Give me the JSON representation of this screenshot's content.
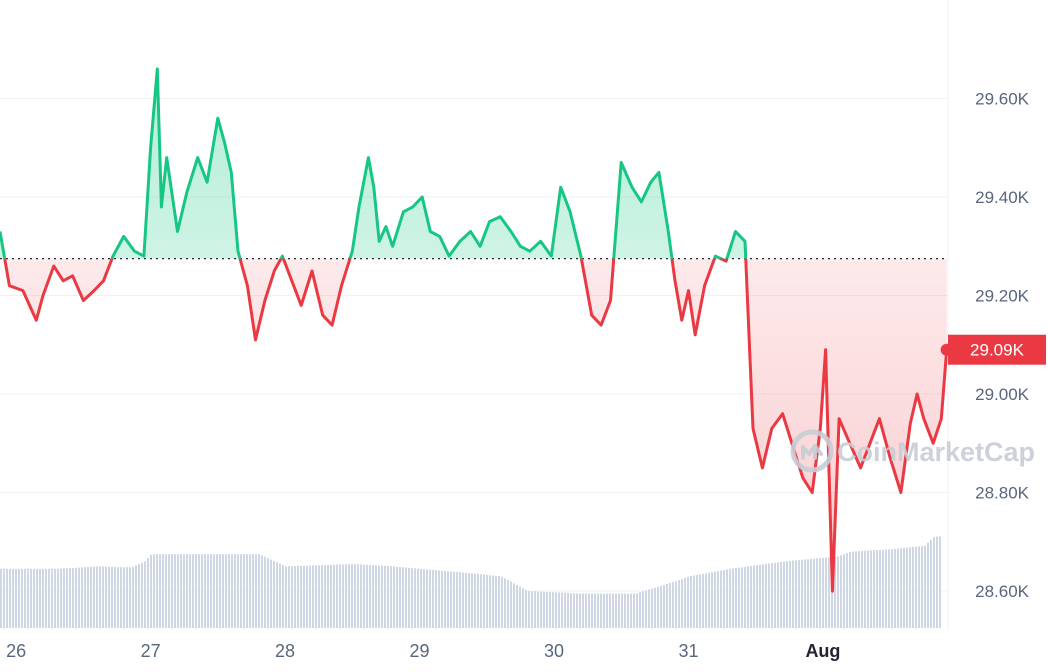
{
  "watermark": {
    "text": "CoinMarketCap",
    "icon": "coinmarketcap-logo-icon"
  },
  "colors": {
    "up": "#16c784",
    "down": "#ea3943",
    "grid": "#eff2f5",
    "volume": "#cfd6e4",
    "axis_text": "#58667e"
  },
  "chart_data": {
    "type": "line",
    "title": "",
    "xlabel": "",
    "ylabel": "",
    "baseline": 29275,
    "current_price_label": "29.09K",
    "current_price": 29090,
    "ylim": [
      28525,
      29800
    ],
    "yticks": [
      {
        "v": 29600,
        "label": "29.60K"
      },
      {
        "v": 29400,
        "label": "29.40K"
      },
      {
        "v": 29200,
        "label": "29.20K"
      },
      {
        "v": 29000,
        "label": "29.00K"
      },
      {
        "v": 28800,
        "label": "28.80K"
      },
      {
        "v": 28600,
        "label": "28.60K"
      }
    ],
    "xlim": [
      25.88,
      32.93
    ],
    "xticks": [
      {
        "x": 26,
        "label": "26",
        "bold": false
      },
      {
        "x": 27,
        "label": "27",
        "bold": false
      },
      {
        "x": 28,
        "label": "28",
        "bold": false
      },
      {
        "x": 29,
        "label": "29",
        "bold": false
      },
      {
        "x": 30,
        "label": "30",
        "bold": false
      },
      {
        "x": 31,
        "label": "31",
        "bold": false
      },
      {
        "x": 32,
        "label": "Aug",
        "bold": true
      }
    ],
    "price": {
      "x": [
        25.88,
        25.95,
        26.05,
        26.15,
        26.2,
        26.28,
        26.35,
        26.42,
        26.5,
        26.58,
        26.65,
        26.72,
        26.8,
        26.88,
        26.95,
        27,
        27.05,
        27.08,
        27.12,
        27.2,
        27.27,
        27.35,
        27.42,
        27.5,
        27.55,
        27.6,
        27.65,
        27.72,
        27.78,
        27.85,
        27.92,
        27.98,
        28.05,
        28.12,
        28.2,
        28.28,
        28.35,
        28.42,
        28.5,
        28.55,
        28.62,
        28.66,
        28.7,
        28.75,
        28.8,
        28.88,
        28.95,
        29.02,
        29.08,
        29.15,
        29.22,
        29.3,
        29.38,
        29.45,
        29.52,
        29.6,
        29.68,
        29.75,
        29.82,
        29.9,
        29.98,
        30.05,
        30.12,
        30.2,
        30.28,
        30.35,
        30.42,
        30.5,
        30.58,
        30.65,
        30.72,
        30.78,
        30.85,
        30.9,
        30.95,
        31,
        31.05,
        31.12,
        31.2,
        31.28,
        31.35,
        31.42,
        31.48,
        31.55,
        31.62,
        31.7,
        31.78,
        31.85,
        31.92,
        31.98,
        32.02,
        32.07,
        32.12,
        32.2,
        32.28,
        32.35,
        32.42,
        32.5,
        32.58,
        32.65,
        32.7,
        32.75,
        32.82,
        32.88,
        32.92
      ],
      "y": [
        29330,
        29220,
        29210,
        29150,
        29200,
        29260,
        29230,
        29240,
        29190,
        29210,
        29230,
        29280,
        29320,
        29290,
        29280,
        29500,
        29660,
        29380,
        29480,
        29330,
        29410,
        29480,
        29430,
        29560,
        29510,
        29450,
        29290,
        29220,
        29110,
        29190,
        29250,
        29280,
        29230,
        29180,
        29250,
        29160,
        29140,
        29220,
        29290,
        29380,
        29480,
        29420,
        29310,
        29340,
        29300,
        29370,
        29380,
        29400,
        29330,
        29320,
        29280,
        29310,
        29330,
        29300,
        29350,
        29360,
        29330,
        29300,
        29290,
        29310,
        29280,
        29420,
        29370,
        29280,
        29160,
        29140,
        29190,
        29470,
        29420,
        29390,
        29430,
        29450,
        29330,
        29230,
        29150,
        29210,
        29120,
        29220,
        29280,
        29270,
        29330,
        29310,
        28930,
        28850,
        28930,
        28960,
        28890,
        28830,
        28800,
        28930,
        29090,
        28600,
        28950,
        28900,
        28850,
        28900,
        28950,
        28870,
        28800,
        28940,
        29000,
        28950,
        28900,
        28950,
        29090
      ]
    },
    "volume": {
      "x": [
        25.88,
        26.3,
        26.6,
        26.85,
        26.95,
        27.0,
        27.5,
        27.8,
        28.0,
        28.5,
        28.8,
        29.3,
        29.6,
        29.8,
        30.2,
        30.6,
        30.9,
        31.0,
        31.3,
        31.7,
        32.1,
        32.2,
        32.5,
        32.75,
        32.82,
        32.93
      ],
      "y": [
        28645,
        28645,
        28650,
        28648,
        28660,
        28675,
        28675,
        28675,
        28650,
        28655,
        28650,
        28638,
        28630,
        28600,
        28595,
        28595,
        28620,
        28630,
        28645,
        28660,
        28670,
        28680,
        28685,
        28692,
        28710,
        28712
      ]
    }
  }
}
